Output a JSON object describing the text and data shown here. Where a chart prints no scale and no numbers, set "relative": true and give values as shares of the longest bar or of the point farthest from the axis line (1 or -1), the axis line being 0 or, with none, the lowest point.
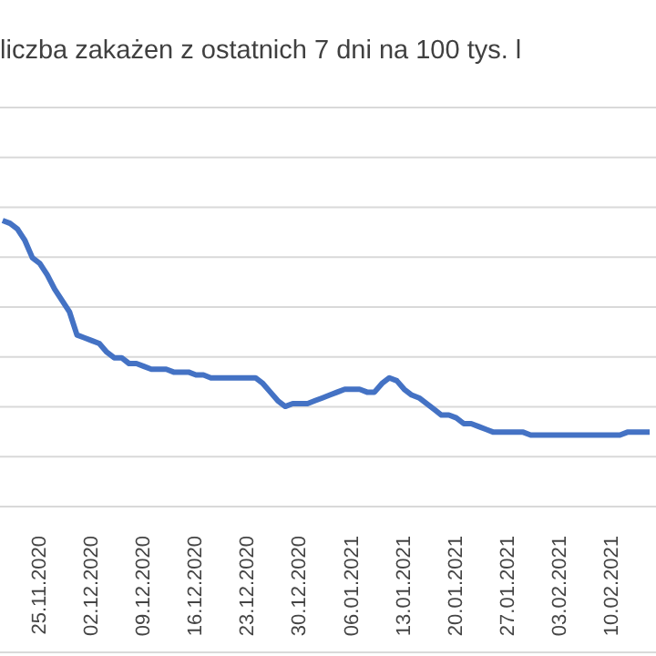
{
  "chart_data": {
    "type": "line",
    "title": "liczba zakażen z ostatnich 7 dni na 100 tys. l",
    "relative": true,
    "grid": "y",
    "color": "#4472c4",
    "categories": [
      null,
      null,
      null,
      null,
      null,
      "25.11.2020",
      null,
      null,
      null,
      null,
      null,
      null,
      "02.12.2020",
      null,
      null,
      null,
      null,
      null,
      null,
      "09.12.2020",
      null,
      null,
      null,
      null,
      null,
      null,
      "16.12.2020",
      null,
      null,
      null,
      null,
      null,
      null,
      "23.12.2020",
      null,
      null,
      null,
      null,
      null,
      null,
      "30.12.2020",
      null,
      null,
      null,
      null,
      null,
      null,
      "06.01.2021",
      null,
      null,
      null,
      null,
      null,
      null,
      "13.01.2021",
      null,
      null,
      null,
      null,
      null,
      null,
      "20.01.2021",
      null,
      null,
      null,
      null,
      null,
      null,
      "27.01.2021",
      null,
      null,
      null,
      null,
      null,
      null,
      "03.02.2021",
      null,
      null,
      null,
      null,
      null,
      null,
      "10.02.2021",
      null,
      null,
      null,
      null,
      null
    ],
    "values": [
      1.0,
      0.99,
      0.97,
      0.93,
      0.87,
      0.85,
      0.81,
      0.76,
      0.72,
      0.68,
      0.6,
      0.59,
      0.58,
      0.57,
      0.54,
      0.52,
      0.52,
      0.5,
      0.5,
      0.49,
      0.48,
      0.48,
      0.48,
      0.47,
      0.47,
      0.47,
      0.46,
      0.46,
      0.45,
      0.45,
      0.45,
      0.45,
      0.45,
      0.45,
      0.45,
      0.43,
      0.4,
      0.37,
      0.35,
      0.36,
      0.36,
      0.36,
      0.37,
      0.38,
      0.39,
      0.4,
      0.41,
      0.41,
      0.41,
      0.4,
      0.4,
      0.43,
      0.45,
      0.44,
      0.41,
      0.39,
      0.38,
      0.36,
      0.34,
      0.32,
      0.32,
      0.31,
      0.29,
      0.29,
      0.28,
      0.27,
      0.26,
      0.26,
      0.26,
      0.26,
      0.26,
      0.25,
      0.25,
      0.25,
      0.25,
      0.25,
      0.25,
      0.25,
      0.25,
      0.25,
      0.25,
      0.25,
      0.25,
      0.25,
      0.26,
      0.26,
      0.26,
      0.26
    ]
  }
}
